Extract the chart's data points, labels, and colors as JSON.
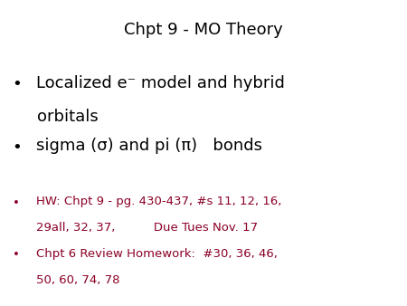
{
  "title": "Chpt 9 - MO Theory",
  "title_color": "#000000",
  "title_fontsize": 13,
  "background_color": "#ffffff",
  "bullet1_line1": "Localized e⁻ model and hybrid",
  "bullet1_line2": "orbitals",
  "bullet2_text": "sigma (σ) and pi (π)   bonds",
  "bullet1_color": "#000000",
  "bullet2_color": "#000000",
  "bullet_fontsize": 13,
  "hw_bullet1_line1": "HW: Chpt 9 - pg. 430-437, #s 11, 12, 16,",
  "hw_bullet1_line2": "29all, 32, 37,          Due Tues Nov. 17",
  "hw_bullet2_line1": "Chpt 6 Review Homework:  #30, 36, 46,",
  "hw_bullet2_line2": "50, 60, 74, 78",
  "hw_color": "#8B0026",
  "hw_fontsize": 9.5,
  "bullet_char": "•"
}
